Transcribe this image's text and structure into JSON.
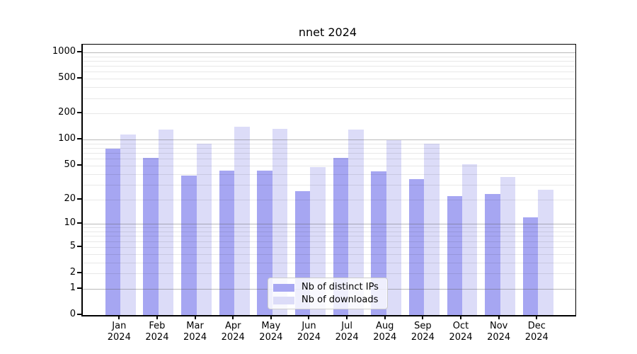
{
  "title": "nnet 2024",
  "legend": {
    "items": [
      {
        "label": "Nb of distinct IPs",
        "color": "#a6a6f2"
      },
      {
        "label": "Nb of downloads",
        "color": "#dcdcf8"
      }
    ]
  },
  "y_axis": {
    "scale": "log1p",
    "ticks": [
      {
        "label": "1000",
        "value": 1000
      },
      {
        "label": "500",
        "value": 500
      },
      {
        "label": "200",
        "value": 200
      },
      {
        "label": "100",
        "value": 100
      },
      {
        "label": "50",
        "value": 50
      },
      {
        "label": "20",
        "value": 20
      },
      {
        "label": "10",
        "value": 10
      },
      {
        "label": "5",
        "value": 5
      },
      {
        "label": "2",
        "value": 2
      },
      {
        "label": "1",
        "value": 1
      },
      {
        "label": "0",
        "value": 0
      }
    ],
    "major_gridlines": [
      1,
      10,
      100,
      1000
    ],
    "minor_gridlines": [
      2,
      3,
      4,
      5,
      6,
      7,
      8,
      9,
      20,
      30,
      40,
      50,
      60,
      70,
      80,
      90,
      200,
      300,
      400,
      500,
      600,
      700,
      800,
      900
    ]
  },
  "x_axis": {
    "categories": [
      {
        "month": "Jan",
        "year": "2024"
      },
      {
        "month": "Feb",
        "year": "2024"
      },
      {
        "month": "Mar",
        "year": "2024"
      },
      {
        "month": "Apr",
        "year": "2024"
      },
      {
        "month": "May",
        "year": "2024"
      },
      {
        "month": "Jun",
        "year": "2024"
      },
      {
        "month": "Jul",
        "year": "2024"
      },
      {
        "month": "Aug",
        "year": "2024"
      },
      {
        "month": "Sep",
        "year": "2024"
      },
      {
        "month": "Oct",
        "year": "2024"
      },
      {
        "month": "Nov",
        "year": "2024"
      },
      {
        "month": "Dec",
        "year": "2024"
      }
    ]
  },
  "chart_data": {
    "type": "bar",
    "title": "nnet 2024",
    "categories": [
      "Jan 2024",
      "Feb 2024",
      "Mar 2024",
      "Apr 2024",
      "May 2024",
      "Jun 2024",
      "Jul 2024",
      "Aug 2024",
      "Sep 2024",
      "Oct 2024",
      "Nov 2024",
      "Dec 2024"
    ],
    "series": [
      {
        "name": "Nb of distinct IPs",
        "color": "#a6a6f2",
        "values": [
          78,
          61,
          38,
          44,
          44,
          25,
          62,
          43,
          35,
          22,
          23,
          12
        ]
      },
      {
        "name": "Nb of downloads",
        "color": "#dcdcf8",
        "values": [
          114,
          131,
          90,
          140,
          132,
          48,
          131,
          99,
          90,
          52,
          37,
          26
        ]
      }
    ],
    "xlabel": "",
    "ylabel": "",
    "y_scale": "log1p",
    "y_ticks": [
      0,
      1,
      2,
      5,
      10,
      20,
      50,
      100,
      200,
      500,
      1000
    ],
    "ylim": [
      0,
      1228
    ],
    "grid": true,
    "legend_position": "lower-center"
  }
}
